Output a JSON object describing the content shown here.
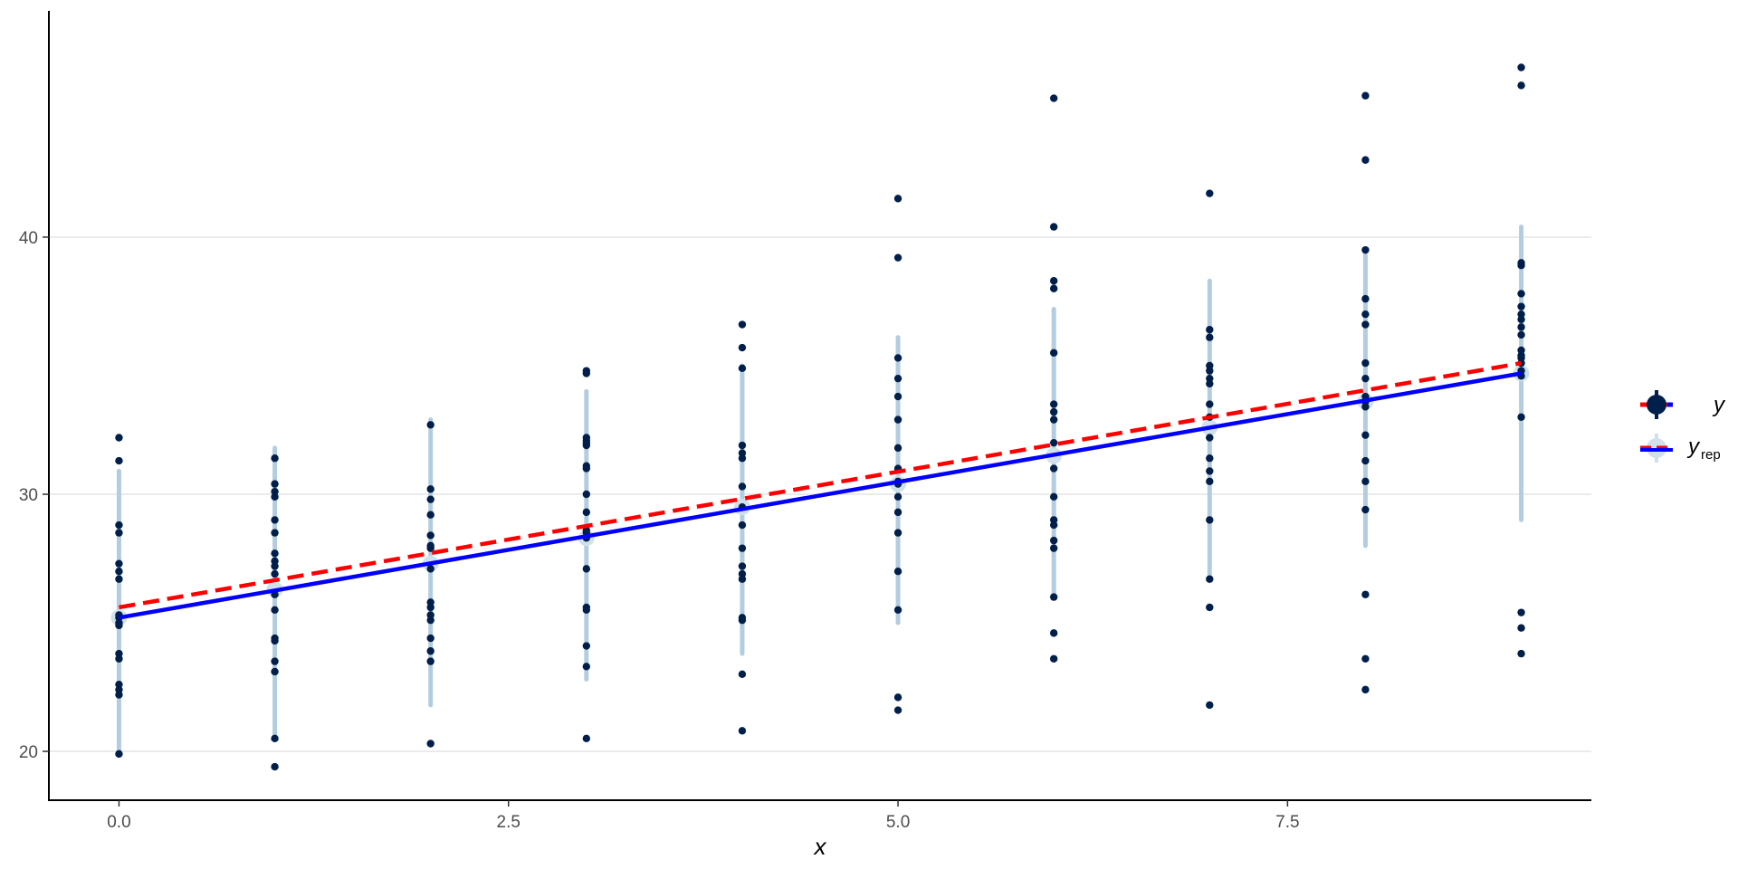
{
  "chart_data": {
    "type": "scatter",
    "title": "",
    "xlabel": "x",
    "ylabel": "",
    "xlim": [
      -0.45,
      9.45
    ],
    "ylim": [
      18.1,
      48.8
    ],
    "x_ticks": [
      0,
      2.5,
      5,
      7.5
    ],
    "x_tick_labels": [
      "0.0",
      "2.5",
      "5.0",
      "7.5"
    ],
    "y_ticks": [
      20,
      30,
      40
    ],
    "y_tick_labels": [
      "20",
      "30",
      "40"
    ],
    "grid": "horizontal major",
    "legend_position": "right",
    "colors": {
      "observed_points": "#011f4b",
      "interval_band": "#b3cde0",
      "yrep_point": "#d1e1ec",
      "blue_line": "#0000ff",
      "red_dashed_line": "#ff0000",
      "grid": "#ebebeb",
      "axis": "#000000"
    },
    "observed_y": {
      "x": [
        0,
        0,
        0,
        0,
        0,
        0,
        0,
        0,
        0,
        0,
        0,
        0,
        0,
        0,
        0,
        0,
        0,
        1,
        1,
        1,
        1,
        1,
        1,
        1,
        1,
        1,
        1,
        1,
        1,
        1,
        1,
        1,
        1,
        1,
        1,
        2,
        2,
        2,
        2,
        2,
        2,
        2,
        2,
        2,
        2,
        2,
        2,
        2,
        2,
        2,
        2,
        3,
        3,
        3,
        3,
        3,
        3,
        3,
        3,
        3,
        3,
        3,
        3,
        3,
        3,
        3,
        3,
        3,
        3,
        3,
        4,
        4,
        4,
        4,
        4,
        4,
        4,
        4,
        4,
        4,
        4,
        4,
        4,
        4,
        4,
        4,
        4,
        5,
        5,
        5,
        5,
        5,
        5,
        5,
        5,
        5,
        5,
        5,
        5,
        5,
        5,
        5,
        5,
        5,
        6,
        6,
        6,
        6,
        6,
        6,
        6,
        6,
        6,
        6,
        6,
        6,
        6,
        6,
        6,
        6,
        6,
        6,
        7,
        7,
        7,
        7,
        7,
        7,
        7,
        7,
        7,
        7,
        7,
        7,
        7,
        7,
        7,
        7,
        7,
        8,
        8,
        8,
        8,
        8,
        8,
        8,
        8,
        8,
        8,
        8,
        8,
        8,
        8,
        8,
        8,
        8,
        8,
        9,
        9,
        9,
        9,
        9,
        9,
        9,
        9,
        9,
        9,
        9,
        9,
        9,
        9,
        9,
        9,
        9,
        9,
        9,
        9
      ],
      "y": [
        32.2,
        31.3,
        28.8,
        28.5,
        27.3,
        27.0,
        26.7,
        25.2,
        25.0,
        23.8,
        23.6,
        22.6,
        22.4,
        22.2,
        19.9,
        25.3,
        24.9,
        31.4,
        30.4,
        30.1,
        29.9,
        29.0,
        28.5,
        27.7,
        27.4,
        26.9,
        26.1,
        25.5,
        24.4,
        24.3,
        23.5,
        23.1,
        20.5,
        19.4,
        27.2,
        32.7,
        30.2,
        29.8,
        29.2,
        28.4,
        27.9,
        27.1,
        25.8,
        25.6,
        25.3,
        25.1,
        24.4,
        23.9,
        23.5,
        20.3,
        28.0,
        34.8,
        34.7,
        32.2,
        32.1,
        31.9,
        31.1,
        31.0,
        30.0,
        29.3,
        28.5,
        28.3,
        27.1,
        25.6,
        25.5,
        24.1,
        23.3,
        20.5,
        32.0,
        28.6,
        36.6,
        35.7,
        34.9,
        31.9,
        31.6,
        31.4,
        30.3,
        29.5,
        28.8,
        27.9,
        27.2,
        26.9,
        26.7,
        25.2,
        25.1,
        23.0,
        20.8,
        41.5,
        39.2,
        35.3,
        34.5,
        33.8,
        32.9,
        31.8,
        31.0,
        30.5,
        29.9,
        29.3,
        28.5,
        27.0,
        25.5,
        22.1,
        21.6,
        30.4,
        45.4,
        40.4,
        38.3,
        38.0,
        35.5,
        33.5,
        33.2,
        32.9,
        32.0,
        31.0,
        29.9,
        29.0,
        28.8,
        28.2,
        27.9,
        26.0,
        24.6,
        23.6,
        41.7,
        36.4,
        36.1,
        35.0,
        34.8,
        34.5,
        34.3,
        33.5,
        33.0,
        32.2,
        31.4,
        30.9,
        30.5,
        29.0,
        26.7,
        25.6,
        21.8,
        45.5,
        43.0,
        39.5,
        37.6,
        37.0,
        36.6,
        35.1,
        33.8,
        33.6,
        32.3,
        31.3,
        30.5,
        29.4,
        26.1,
        23.6,
        22.4,
        33.4,
        34.5,
        46.6,
        45.9,
        39.0,
        38.9,
        37.8,
        37.3,
        37.0,
        36.8,
        36.5,
        36.2,
        35.6,
        35.4,
        35.3,
        35.1,
        34.8,
        34.6,
        25.4,
        24.8,
        23.8,
        33.0
      ]
    },
    "yrep_intervals": {
      "x": [
        0,
        1,
        2,
        3,
        4,
        5,
        6,
        7,
        8,
        9
      ],
      "median": [
        25.2,
        26.3,
        27.3,
        28.3,
        29.5,
        30.4,
        31.5,
        32.6,
        33.6,
        34.7
      ],
      "low": [
        20.0,
        20.6,
        21.8,
        22.8,
        23.8,
        25.0,
        26.0,
        26.9,
        28.0,
        29.0
      ],
      "high": [
        30.9,
        31.8,
        32.9,
        34.0,
        35.0,
        36.1,
        37.2,
        38.3,
        39.3,
        40.4
      ]
    },
    "series": [
      {
        "name": "y",
        "x": [
          0,
          9
        ],
        "y": [
          25.6,
          35.1
        ],
        "style": "dashed",
        "color": "#ff0000"
      },
      {
        "name": "y_rep",
        "x": [
          0,
          9
        ],
        "y": [
          25.2,
          34.7
        ],
        "style": "solid",
        "color": "#0000ff"
      }
    ],
    "legend": [
      {
        "label": "y",
        "subscript": ""
      },
      {
        "label": "y",
        "subscript": "rep"
      }
    ]
  }
}
